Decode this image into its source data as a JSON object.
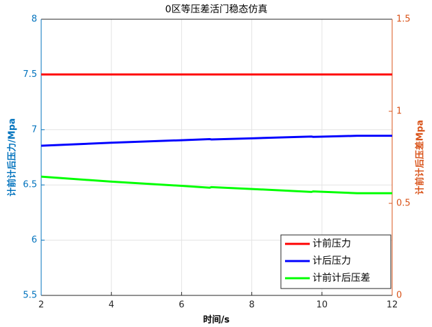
{
  "chart_data": {
    "type": "line",
    "title": "0区等压差活门稳态仿真",
    "x_label": "时间/s",
    "y_label": "计前计后压力/Mpa",
    "y2_label": "计前计后压差Mpa",
    "x": [
      2,
      4,
      6,
      6.8,
      6.85,
      8,
      9.7,
      9.75,
      11,
      12
    ],
    "series": [
      {
        "name": "计前压力",
        "color": "#ff0000",
        "values": [
          7.5,
          7.5,
          7.5,
          7.5,
          7.5,
          7.5,
          7.5,
          7.5,
          7.5,
          7.5
        ]
      },
      {
        "name": "计后压力",
        "color": "#0000ff",
        "values": [
          6.855,
          6.882,
          6.905,
          6.915,
          6.912,
          6.922,
          6.938,
          6.935,
          6.945,
          6.945
        ]
      },
      {
        "name": "计前计后压差",
        "color": "#00ff00",
        "axis": "y2",
        "values": [
          0.645,
          0.618,
          0.595,
          0.585,
          0.588,
          0.578,
          0.562,
          0.565,
          0.555,
          0.555
        ]
      }
    ],
    "xlim": [
      2,
      12
    ],
    "xticks": [
      2,
      4,
      6,
      8,
      10,
      12
    ],
    "ylim": [
      5.5,
      8
    ],
    "yticks": [
      5.5,
      6,
      6.5,
      7,
      7.5,
      8
    ],
    "y2lim": [
      0,
      1.5
    ],
    "y2ticks": [
      0,
      0.5,
      1,
      1.5
    ],
    "y_color": "#0072bd",
    "y2_color": "#d95319",
    "grid": true,
    "legend": "lower-right"
  }
}
